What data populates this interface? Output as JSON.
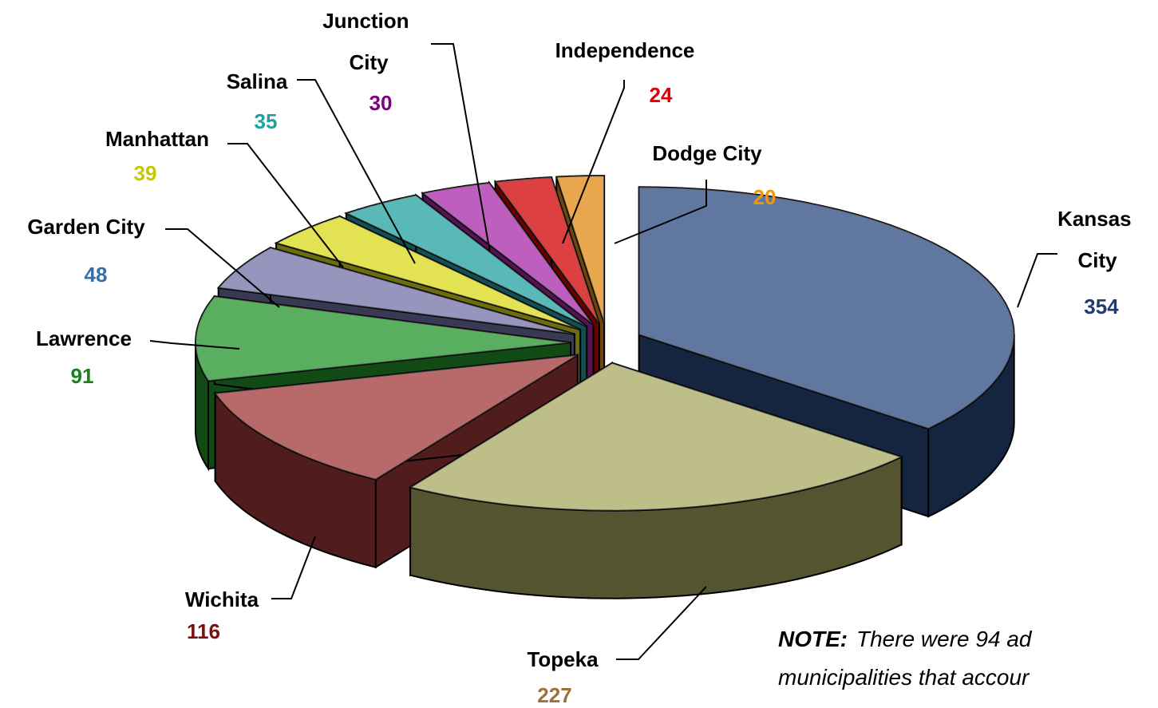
{
  "chart_data": {
    "type": "pie3d",
    "categories": [
      "Kansas City",
      "Topeka",
      "Wichita",
      "Lawrence",
      "Garden City",
      "Manhattan",
      "Salina",
      "Junction City",
      "Independence",
      "Dodge City"
    ],
    "values": [
      354,
      227,
      116,
      91,
      48,
      39,
      35,
      30,
      24,
      20
    ],
    "colors": [
      "#2b4a80",
      "#a8a860",
      "#a03838",
      "#22952a",
      "#7272a8",
      "#d8d81a",
      "#22a0a0",
      "#a828a8",
      "#d00000",
      "#e08a10"
    ],
    "label_colors": [
      "#1f3b6e",
      "#a0703a",
      "#7a1010",
      "#1a801a",
      "#3a6ea8",
      "#c8c800",
      "#20a0a0",
      "#800080",
      "#e00000",
      "#f0960a"
    ],
    "note": {
      "title": "NOTE:",
      "lines": [
        "There were 94 ad",
        "municipalities that accour"
      ]
    }
  }
}
